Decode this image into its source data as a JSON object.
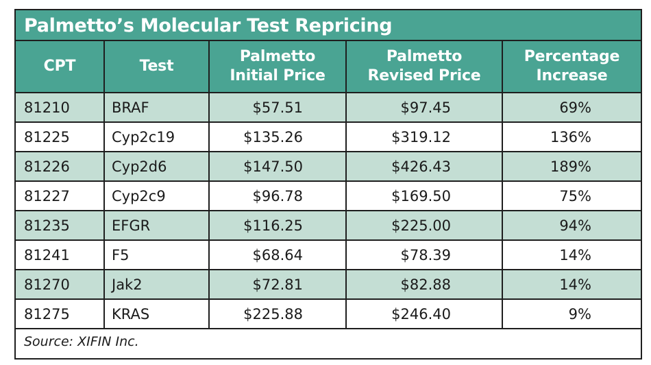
{
  "title": "Palmetto’s Molecular Test Repricing",
  "columns": [
    {
      "line1": "CPT",
      "line2": ""
    },
    {
      "line1": "Test",
      "line2": ""
    },
    {
      "line1": "Palmetto",
      "line2": "Initial Price"
    },
    {
      "line1": "Palmetto",
      "line2": "Revised Price"
    },
    {
      "line1": "Percentage",
      "line2": "Increase"
    }
  ],
  "rows": [
    {
      "cpt": "81210",
      "test": "BRAF",
      "initial": "$57.51",
      "revised": "$97.45",
      "increase": "69%"
    },
    {
      "cpt": "81225",
      "test": "Cyp2c19",
      "initial": "$135.26",
      "revised": "$319.12",
      "increase": "136%"
    },
    {
      "cpt": "81226",
      "test": "Cyp2d6",
      "initial": "$147.50",
      "revised": "$426.43",
      "increase": "189%"
    },
    {
      "cpt": "81227",
      "test": "Cyp2c9",
      "initial": "$96.78",
      "revised": "$169.50",
      "increase": "75%"
    },
    {
      "cpt": "81235",
      "test": "EFGR",
      "initial": "$116.25",
      "revised": "$225.00",
      "increase": "94%"
    },
    {
      "cpt": "81241",
      "test": "F5",
      "initial": "$68.64",
      "revised": "$78.39",
      "increase": "14%"
    },
    {
      "cpt": "81270",
      "test": "Jak2",
      "initial": "$72.81",
      "revised": "$82.88",
      "increase": "14%"
    },
    {
      "cpt": "81275",
      "test": "KRAS",
      "initial": "$225.88",
      "revised": "$246.40",
      "increase": "9%"
    }
  ],
  "source": "Source:  XIFIN Inc.",
  "colors": {
    "header_bg": "#4aa493",
    "shaded_row": "#c4ded4",
    "border": "#1e1e1e"
  }
}
